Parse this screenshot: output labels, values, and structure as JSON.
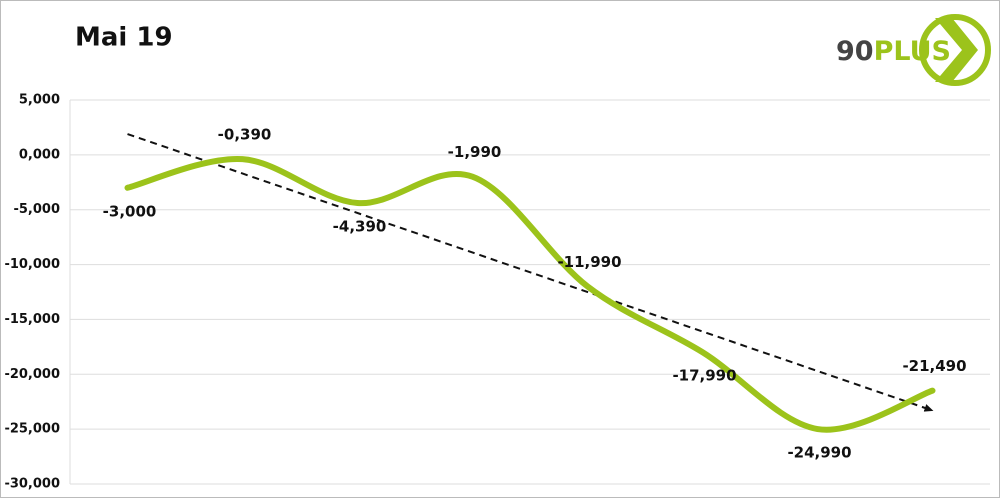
{
  "logo": "90PLUS",
  "chart_data": {
    "type": "line",
    "title": "Mai 19",
    "categories": [
      null,
      null,
      null,
      null,
      null,
      null,
      null,
      null
    ],
    "series": [
      {
        "name": null,
        "color": "#9cc31b",
        "values": [
          -3,
          -0.39,
          -4.39,
          -1.99,
          -11.99,
          -17.99,
          -24.99,
          -21.49
        ],
        "value_labels": [
          "-3,000",
          "-0,390",
          "-4,390",
          "-1,990",
          "-11,990",
          "-17,990",
          "-24,990",
          "-21,490"
        ]
      }
    ],
    "trendline": {
      "values": [
        1.9,
        -23.3
      ],
      "color": "#111",
      "dashed": true
    },
    "ylim": [
      -30,
      5
    ],
    "yticks": [
      {
        "value": -30,
        "label": "-30,000"
      },
      {
        "value": -25,
        "label": "-25,000"
      },
      {
        "value": -20,
        "label": "-20,000"
      },
      {
        "value": -15,
        "label": "-15,000"
      },
      {
        "value": -10,
        "label": "-10,000"
      },
      {
        "value": -5,
        "label": "-5,000"
      },
      {
        "value": 0,
        "label": "0,000"
      },
      {
        "value": 5,
        "label": "5,000"
      }
    ],
    "grid": true,
    "smooth": true
  }
}
